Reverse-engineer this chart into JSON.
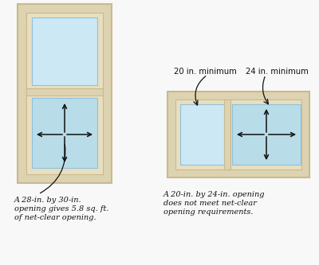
{
  "bg_color": "#f8f8f8",
  "frame_outer_color": "#ddd3b0",
  "frame_mid_color": "#e8dfc0",
  "frame_inner_color": "#f0e8cc",
  "glass_top_color": "#cce8f4",
  "glass_bot_color": "#b8dce8",
  "glass_fixed_color": "#cce8f4",
  "glass_open_color": "#b8dce8",
  "arrow_color": "#111111",
  "text_color": "#111111",
  "caption1_line1": "A 28-in. by 30-in.",
  "caption1_line2": "opening gives 5.8 sq. ft.",
  "caption1_line3": "of net-clear opening.",
  "caption2_line1": "A 20-in. by 24-in. opening",
  "caption2_line2": "does not meet net-clear",
  "caption2_line3": "opening requirements.",
  "label1": "20 in. minimum",
  "label2": "24 in. minimum",
  "lw1": "#ddd3b0"
}
